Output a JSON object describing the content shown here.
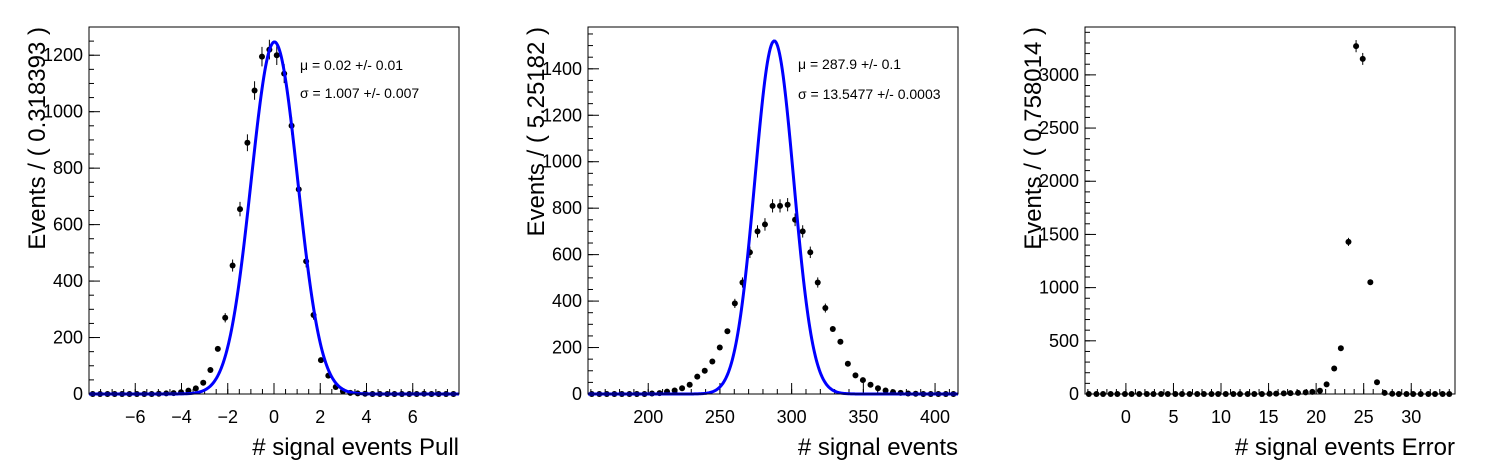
{
  "chart_data": [
    {
      "type": "scatter",
      "xlabel": "# signal events Pull",
      "ylabel": "Events / ( 0.318393 )",
      "xlim": [
        -8,
        8
      ],
      "ylim": [
        0,
        1300
      ],
      "x_ticks": [
        -6,
        -4,
        -2,
        0,
        2,
        4,
        6
      ],
      "y_ticks": [
        0,
        200,
        400,
        600,
        800,
        1000,
        1200
      ],
      "x_ticks_minor": 0.5,
      "y_ticks_minor": 50,
      "grid": false,
      "annotations": [
        {
          "symbol": "μ",
          "text": "= 0.02 +/- 0.01"
        },
        {
          "symbol": "σ",
          "text": "= 1.007 +/- 0.007"
        }
      ],
      "series": [
        {
          "kind": "points",
          "color": "#000000",
          "x": [
            -7.84,
            -7.52,
            -7.2,
            -6.89,
            -6.57,
            -6.25,
            -5.93,
            -5.61,
            -5.29,
            -4.98,
            -4.66,
            -4.34,
            -4.02,
            -3.7,
            -3.38,
            -3.06,
            -2.75,
            -2.43,
            -2.11,
            -1.79,
            -1.47,
            -1.15,
            -0.84,
            -0.52,
            -0.2,
            0.12,
            0.44,
            0.76,
            1.07,
            1.39,
            1.71,
            2.03,
            2.35,
            2.67,
            2.98,
            3.3,
            3.62,
            3.94,
            4.26,
            4.58,
            4.9,
            5.21,
            5.53,
            5.85,
            6.17,
            6.49,
            6.81,
            7.12,
            7.44,
            7.76
          ],
          "y": [
            0,
            0,
            0,
            0,
            0,
            0,
            0,
            0,
            0,
            1,
            2,
            3,
            6,
            12,
            20,
            40,
            85,
            160,
            270,
            455,
            655,
            890,
            1075,
            1195,
            1220,
            1200,
            1135,
            950,
            725,
            470,
            280,
            120,
            65,
            25,
            10,
            4,
            2,
            1,
            0,
            0,
            0,
            0,
            0,
            0,
            0,
            1,
            0,
            0,
            0,
            0
          ]
        },
        {
          "kind": "gaussian",
          "color": "#0000ff",
          "amplitude": 1247,
          "mean": 0.02,
          "sigma": 1.007
        }
      ]
    },
    {
      "type": "scatter",
      "xlabel": "# signal events",
      "ylabel": "Events / ( 5.25182 )",
      "xlim": [
        158,
        416
      ],
      "ylim": [
        0,
        1580
      ],
      "x_ticks": [
        200,
        250,
        300,
        350,
        400
      ],
      "y_ticks": [
        0,
        200,
        400,
        600,
        800,
        1000,
        1200,
        1400
      ],
      "x_ticks_minor": 10,
      "y_ticks_minor": 50,
      "grid": false,
      "annotations": [
        {
          "symbol": "μ",
          "text": "= 287.9 +/- 0.1"
        },
        {
          "symbol": "σ",
          "text": "= 13.5477 +/- 0.0003"
        }
      ],
      "series": [
        {
          "kind": "points",
          "color": "#000000",
          "x": [
            160.6,
            165.9,
            171.1,
            176.4,
            181.6,
            186.9,
            192.1,
            197.4,
            202.6,
            207.9,
            213.1,
            218.4,
            223.6,
            228.9,
            234.2,
            239.4,
            244.7,
            249.9,
            255.2,
            260.4,
            265.7,
            270.9,
            276.2,
            281.4,
            286.7,
            291.9,
            297.2,
            302.4,
            307.7,
            313.0,
            318.2,
            323.5,
            328.7,
            334.0,
            339.2,
            344.5,
            349.7,
            355.0,
            360.2,
            365.5,
            370.7,
            376.0,
            381.2,
            386.5,
            391.8,
            397.0,
            402.3,
            407.5,
            412.8
          ],
          "y": [
            0,
            0,
            0,
            0,
            0,
            0,
            0,
            0,
            2,
            4,
            10,
            15,
            25,
            40,
            75,
            100,
            140,
            200,
            270,
            390,
            480,
            610,
            700,
            730,
            810,
            810,
            815,
            750,
            700,
            610,
            480,
            370,
            280,
            225,
            130,
            80,
            60,
            40,
            25,
            15,
            8,
            5,
            2,
            1,
            0,
            0,
            0,
            0,
            0
          ]
        },
        {
          "kind": "gaussian",
          "color": "#0000ff",
          "amplitude": 1520,
          "mean": 287.9,
          "sigma": 13.5477
        }
      ]
    },
    {
      "type": "scatter",
      "xlabel": "# signal events Error",
      "ylabel": "Events / ( 0.758014 )",
      "xlim": [
        -4.3,
        34.6
      ],
      "ylim": [
        0,
        3450
      ],
      "x_ticks": [
        0,
        5,
        10,
        15,
        20,
        25,
        30
      ],
      "y_ticks": [
        0,
        500,
        1000,
        1500,
        2000,
        2500,
        3000
      ],
      "x_ticks_minor": 1,
      "y_ticks_minor": 100,
      "grid": false,
      "series": [
        {
          "kind": "points",
          "color": "#000000",
          "x": [
            -3.9,
            -3.1,
            -2.4,
            -1.6,
            -0.9,
            -0.1,
            0.6,
            1.4,
            2.2,
            2.9,
            3.7,
            4.4,
            5.2,
            5.9,
            6.7,
            7.5,
            8.2,
            9.0,
            9.7,
            10.5,
            11.3,
            12.0,
            12.8,
            13.5,
            14.3,
            15.1,
            15.8,
            16.6,
            17.3,
            18.1,
            18.9,
            19.6,
            20.4,
            21.1,
            21.9,
            22.6,
            23.4,
            24.2,
            24.9,
            25.7,
            26.4,
            27.2,
            28.0,
            28.7,
            29.5,
            30.2,
            31.0,
            31.8,
            32.5,
            33.3,
            34.0
          ],
          "y": [
            0,
            0,
            0,
            0,
            0,
            0,
            0,
            0,
            0,
            0,
            0,
            0,
            0,
            0,
            0,
            0,
            0,
            0,
            0,
            0,
            0,
            0,
            0,
            0,
            0,
            2,
            4,
            6,
            8,
            10,
            15,
            20,
            30,
            90,
            240,
            430,
            1430,
            3270,
            3150,
            1050,
            110,
            10,
            2,
            0,
            0,
            0,
            0,
            0,
            0,
            0,
            0
          ]
        }
      ]
    }
  ]
}
